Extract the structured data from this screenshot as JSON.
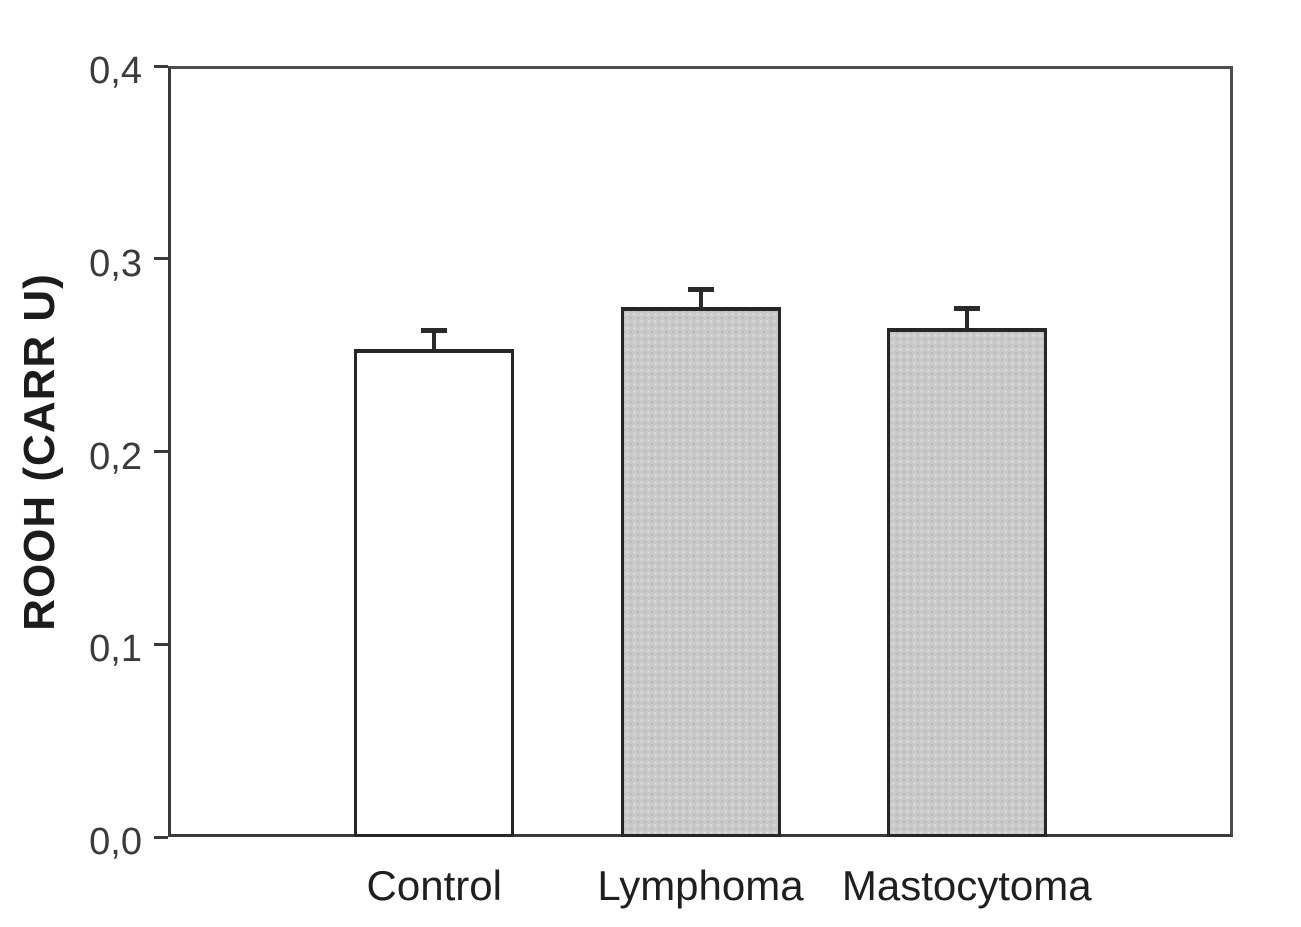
{
  "chart_data": {
    "type": "bar",
    "title": "",
    "categories": [
      "Control",
      "Lymphoma",
      "Mastocytoma"
    ],
    "values": [
      0.253,
      0.275,
      0.264
    ],
    "errors": [
      0.01,
      0.009,
      0.01
    ],
    "error_direction": "upper-only",
    "xlabel": "",
    "ylabel": "ROOH (CARR U)",
    "ylim": [
      0.0,
      0.4
    ],
    "yticks": [
      {
        "value": 0.0,
        "label": "0,0"
      },
      {
        "value": 0.1,
        "label": "0,1"
      },
      {
        "value": 0.2,
        "label": "0,2"
      },
      {
        "value": 0.3,
        "label": "0,3"
      },
      {
        "value": 0.4,
        "label": "0,4"
      }
    ],
    "decimal_separator": ",",
    "grid": false,
    "legend": null,
    "bar_styles": [
      {
        "name": "control-bar",
        "fill": "#ffffff",
        "pattern": "none"
      },
      {
        "name": "lymphoma-bar",
        "fill": "#c9c9c9",
        "pattern": "stipple"
      },
      {
        "name": "mastocytoma-bar",
        "fill": "#c9c9c9",
        "pattern": "stipple"
      }
    ],
    "colors": {
      "axis_frame": "#4d4d4d",
      "bar_border": "#262626",
      "error_bar": "#2a2a2a",
      "text": "#2b2b2b",
      "stipple_fill": "#c9c9c9",
      "background": "#ffffff"
    }
  }
}
